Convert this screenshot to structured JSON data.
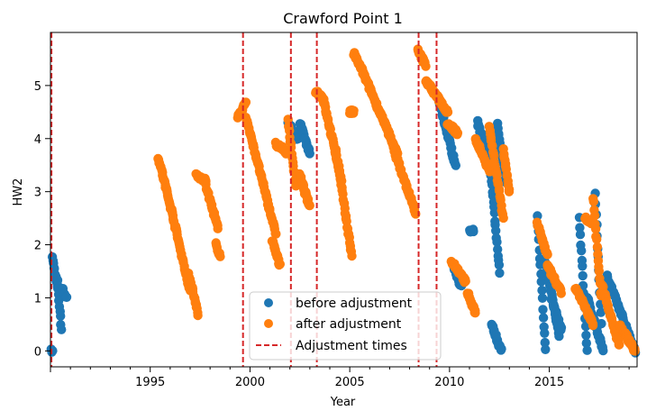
{
  "chart_data": {
    "type": "scatter",
    "title": "Crawford Point 1",
    "xlabel": "Year",
    "ylabel": "HW2",
    "xlim": [
      1990.0,
      2019.4
    ],
    "ylim": [
      -0.3,
      6.0
    ],
    "xticks": [
      1995,
      2000,
      2005,
      2010,
      2015
    ],
    "yticks": [
      0,
      1,
      2,
      3,
      4,
      5
    ],
    "grid": false,
    "legend_position": "bottom-center",
    "legend": [
      {
        "label": "before adjustment",
        "kind": "marker",
        "color": "#1f77b4"
      },
      {
        "label": "after adjustment",
        "kind": "marker",
        "color": "#ff7f0e"
      },
      {
        "label": "Adjustment times",
        "kind": "dashed-line",
        "color": "#d62728"
      }
    ],
    "adjustment_times": [
      1990.05,
      1999.65,
      2002.05,
      2003.35,
      2008.45,
      2009.35
    ],
    "before_adjustment": {
      "name": "before adjustment",
      "color": "#1f77b4",
      "segments": [
        {
          "x": [
            1990.05,
            1990.1
          ],
          "y": [
            0.0,
            0.0
          ]
        },
        {
          "x": [
            1990.1,
            1990.35
          ],
          "y": [
            1.75,
            1.2
          ]
        },
        {
          "x": [
            1990.35,
            1990.55
          ],
          "y": [
            1.3,
            0.4
          ]
        },
        {
          "x": [
            1990.55,
            1990.8
          ],
          "y": [
            1.2,
            1.0
          ]
        },
        {
          "x": [
            2001.9,
            2002.4
          ],
          "y": [
            4.3,
            4.0
          ]
        },
        {
          "x": [
            2002.5,
            2003.0
          ],
          "y": [
            4.3,
            3.7
          ]
        },
        {
          "x": [
            2009.4,
            2010.3
          ],
          "y": [
            4.8,
            3.5
          ]
        },
        {
          "x": [
            2010.2,
            2010.6
          ],
          "y": [
            1.6,
            1.2
          ]
        },
        {
          "x": [
            2011.0,
            2011.2
          ],
          "y": [
            2.25,
            2.25
          ]
        },
        {
          "x": [
            2011.4,
            2011.8
          ],
          "y": [
            4.3,
            3.8
          ]
        },
        {
          "x": [
            2011.9,
            2012.5
          ],
          "y": [
            4.1,
            1.5
          ]
        },
        {
          "x": [
            2012.1,
            2012.6
          ],
          "y": [
            0.5,
            0.0
          ]
        },
        {
          "x": [
            2012.4,
            2012.8
          ],
          "y": [
            4.25,
            3.2
          ]
        },
        {
          "x": [
            2014.4,
            2014.8
          ],
          "y": [
            2.55,
            0.0
          ]
        },
        {
          "x": [
            2014.8,
            2015.5
          ],
          "y": [
            1.7,
            0.3
          ]
        },
        {
          "x": [
            2015.1,
            2015.6
          ],
          "y": [
            1.0,
            0.4
          ]
        },
        {
          "x": [
            2016.5,
            2016.9
          ],
          "y": [
            2.5,
            0.0
          ]
        },
        {
          "x": [
            2016.9,
            2017.7
          ],
          "y": [
            1.0,
            0.0
          ]
        },
        {
          "x": [
            2017.3,
            2017.6
          ],
          "y": [
            3.0,
            0.5
          ]
        },
        {
          "x": [
            2017.9,
            2019.3
          ],
          "y": [
            1.4,
            0.0
          ]
        }
      ]
    },
    "after_adjustment": {
      "name": "after adjustment",
      "color": "#ff7f0e",
      "segments": [
        {
          "x": [
            1995.4,
            1996.1
          ],
          "y": [
            3.65,
            2.6
          ]
        },
        {
          "x": [
            1996.1,
            1997.0
          ],
          "y": [
            2.6,
            1.1
          ]
        },
        {
          "x": [
            1996.9,
            1997.4
          ],
          "y": [
            1.5,
            0.7
          ]
        },
        {
          "x": [
            1997.3,
            1997.8
          ],
          "y": [
            3.3,
            3.2
          ]
        },
        {
          "x": [
            1997.8,
            1998.4
          ],
          "y": [
            3.1,
            2.3
          ]
        },
        {
          "x": [
            1998.3,
            1998.5
          ],
          "y": [
            2.0,
            1.8
          ]
        },
        {
          "x": [
            1999.4,
            1999.8
          ],
          "y": [
            4.4,
            4.7
          ]
        },
        {
          "x": [
            1999.8,
            2001.3
          ],
          "y": [
            4.4,
            2.2
          ]
        },
        {
          "x": [
            2001.1,
            2001.5
          ],
          "y": [
            2.1,
            1.6
          ]
        },
        {
          "x": [
            2001.3,
            2001.8
          ],
          "y": [
            3.9,
            3.75
          ]
        },
        {
          "x": [
            2001.9,
            2002.3
          ],
          "y": [
            4.35,
            3.1
          ]
        },
        {
          "x": [
            2002.5,
            2003.0
          ],
          "y": [
            3.3,
            2.7
          ]
        },
        {
          "x": [
            2003.3,
            2003.7
          ],
          "y": [
            4.9,
            4.75
          ]
        },
        {
          "x": [
            2003.7,
            2004.6
          ],
          "y": [
            4.7,
            3.2
          ]
        },
        {
          "x": [
            2004.3,
            2005.1
          ],
          "y": [
            3.8,
            1.8
          ]
        },
        {
          "x": [
            2005.0,
            2005.2
          ],
          "y": [
            4.5,
            4.5
          ]
        },
        {
          "x": [
            2005.2,
            2005.6
          ],
          "y": [
            5.6,
            5.3
          ]
        },
        {
          "x": [
            2005.6,
            2007.4
          ],
          "y": [
            5.3,
            3.7
          ]
        },
        {
          "x": [
            2007.2,
            2008.3
          ],
          "y": [
            3.8,
            2.6
          ]
        },
        {
          "x": [
            2008.4,
            2008.8
          ],
          "y": [
            5.65,
            5.4
          ]
        },
        {
          "x": [
            2008.8,
            2009.9
          ],
          "y": [
            5.1,
            4.5
          ]
        },
        {
          "x": [
            2009.9,
            2010.4
          ],
          "y": [
            4.3,
            4.1
          ]
        },
        {
          "x": [
            2010.1,
            2010.8
          ],
          "y": [
            1.7,
            1.3
          ]
        },
        {
          "x": [
            2010.9,
            2011.3
          ],
          "y": [
            1.1,
            0.7
          ]
        },
        {
          "x": [
            2011.3,
            2012.0
          ],
          "y": [
            4.0,
            3.4
          ]
        },
        {
          "x": [
            2012.0,
            2012.7
          ],
          "y": [
            4.2,
            2.5
          ]
        },
        {
          "x": [
            2012.7,
            2013.0
          ],
          "y": [
            3.8,
            3.0
          ]
        },
        {
          "x": [
            2014.4,
            2014.9
          ],
          "y": [
            2.4,
            1.8
          ]
        },
        {
          "x": [
            2014.9,
            2015.6
          ],
          "y": [
            1.6,
            1.1
          ]
        },
        {
          "x": [
            2016.3,
            2017.2
          ],
          "y": [
            1.2,
            0.5
          ]
        },
        {
          "x": [
            2016.8,
            2017.2
          ],
          "y": [
            2.5,
            2.4
          ]
        },
        {
          "x": [
            2017.2,
            2017.6
          ],
          "y": [
            2.9,
            1.0
          ]
        },
        {
          "x": [
            2017.6,
            2018.5
          ],
          "y": [
            1.3,
            0.1
          ]
        },
        {
          "x": [
            2018.5,
            2019.3
          ],
          "y": [
            0.5,
            0.0
          ]
        }
      ]
    }
  }
}
